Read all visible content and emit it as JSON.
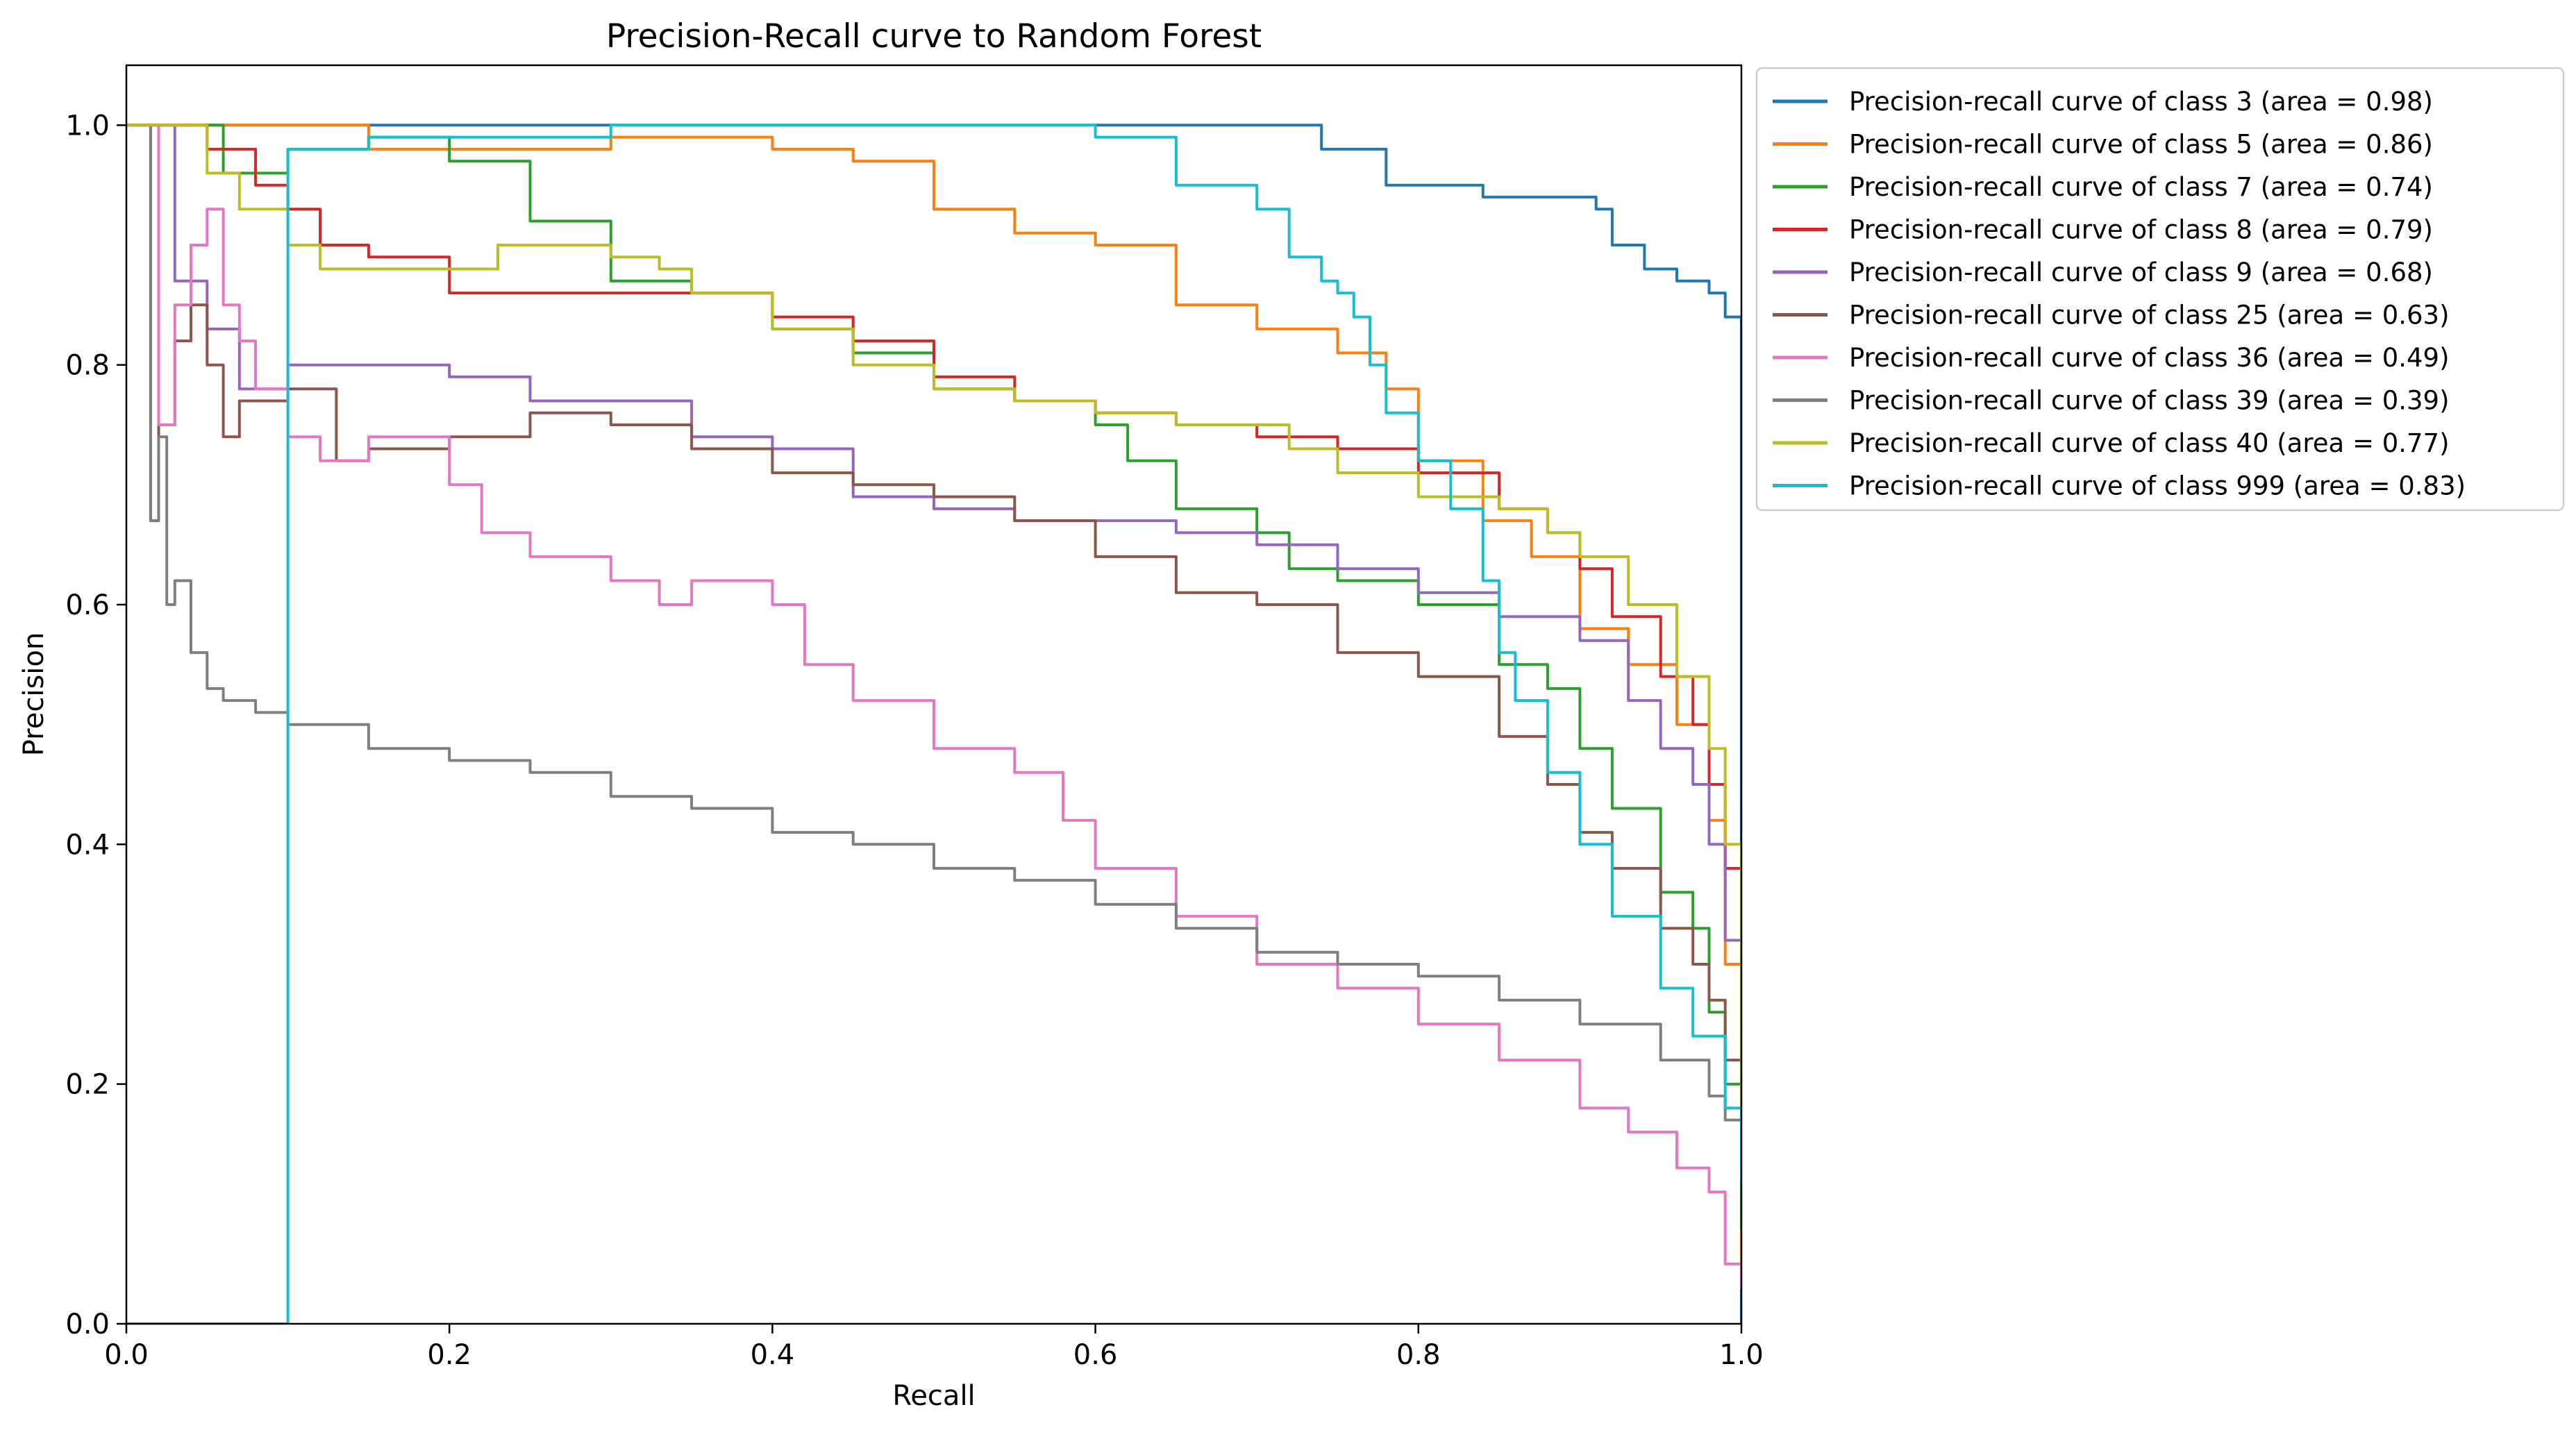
{
  "chart_data": {
    "type": "line",
    "title": "Precision-Recall curve to Random Forest",
    "xlabel": "Recall",
    "ylabel": "Precision",
    "xlim": [
      0.0,
      1.0
    ],
    "ylim": [
      0.0,
      1.05
    ],
    "xticks": [
      0.0,
      0.2,
      0.4,
      0.6,
      0.8,
      1.0
    ],
    "yticks": [
      0.0,
      0.2,
      0.4,
      0.6,
      0.8,
      1.0
    ],
    "xtick_labels": [
      "0.0",
      "0.2",
      "0.4",
      "0.6",
      "0.8",
      "1.0"
    ],
    "ytick_labels": [
      "0.0",
      "0.2",
      "0.4",
      "0.6",
      "0.8",
      "1.0"
    ],
    "grid": false,
    "legend_position": "outside-right-top",
    "series": [
      {
        "name": "Precision-recall curve of class 3 (area = 0.98)",
        "color": "#1f77b4",
        "x": [
          0.0,
          0.73,
          0.74,
          0.75,
          0.78,
          0.8,
          0.84,
          0.88,
          0.91,
          0.92,
          0.94,
          0.96,
          0.98,
          0.99,
          0.99,
          1.0,
          1.0
        ],
        "y": [
          1.0,
          1.0,
          0.98,
          0.98,
          0.95,
          0.95,
          0.94,
          0.94,
          0.93,
          0.9,
          0.88,
          0.87,
          0.86,
          0.86,
          0.84,
          0.64,
          0.0
        ]
      },
      {
        "name": "Precision-recall curve of class 5 (area = 0.86)",
        "color": "#ff7f0e",
        "x": [
          0.0,
          0.13,
          0.15,
          0.2,
          0.3,
          0.35,
          0.4,
          0.4,
          0.45,
          0.5,
          0.55,
          0.6,
          0.65,
          0.7,
          0.75,
          0.78,
          0.8,
          0.84,
          0.87,
          0.9,
          0.93,
          0.96,
          0.98,
          0.99,
          1.0,
          1.0
        ],
        "y": [
          1.0,
          1.0,
          0.98,
          0.98,
          0.99,
          0.99,
          0.98,
          0.98,
          0.97,
          0.93,
          0.91,
          0.9,
          0.85,
          0.83,
          0.81,
          0.78,
          0.72,
          0.67,
          0.64,
          0.58,
          0.55,
          0.5,
          0.42,
          0.3,
          0.15,
          0.05
        ]
      },
      {
        "name": "Precision-recall curve of class 7 (area = 0.74)",
        "color": "#2ca02c",
        "x": [
          0.0,
          0.05,
          0.06,
          0.1,
          0.15,
          0.2,
          0.25,
          0.3,
          0.35,
          0.4,
          0.45,
          0.5,
          0.55,
          0.6,
          0.62,
          0.65,
          0.7,
          0.72,
          0.75,
          0.8,
          0.85,
          0.88,
          0.9,
          0.92,
          0.95,
          0.97,
          0.98,
          0.99,
          1.0,
          1.0
        ],
        "y": [
          1.0,
          1.0,
          0.96,
          0.98,
          0.99,
          0.97,
          0.92,
          0.87,
          0.86,
          0.83,
          0.81,
          0.78,
          0.77,
          0.75,
          0.72,
          0.68,
          0.66,
          0.63,
          0.62,
          0.6,
          0.55,
          0.53,
          0.48,
          0.43,
          0.36,
          0.33,
          0.26,
          0.2,
          0.15,
          0.08
        ]
      },
      {
        "name": "Precision-recall curve of class 8 (area = 0.79)",
        "color": "#d62728",
        "x": [
          0.0,
          0.02,
          0.03,
          0.05,
          0.08,
          0.1,
          0.12,
          0.15,
          0.2,
          0.22,
          0.25,
          0.3,
          0.35,
          0.4,
          0.45,
          0.5,
          0.55,
          0.6,
          0.65,
          0.7,
          0.75,
          0.8,
          0.85,
          0.88,
          0.9,
          0.92,
          0.95,
          0.97,
          0.98,
          0.99,
          1.0,
          1.0
        ],
        "y": [
          1.0,
          1.0,
          1.0,
          0.98,
          0.95,
          0.93,
          0.9,
          0.89,
          0.86,
          0.86,
          0.86,
          0.86,
          0.86,
          0.84,
          0.82,
          0.79,
          0.77,
          0.76,
          0.75,
          0.74,
          0.73,
          0.71,
          0.68,
          0.66,
          0.63,
          0.59,
          0.54,
          0.5,
          0.45,
          0.38,
          0.28,
          0.15
        ]
      },
      {
        "name": "Precision-recall curve of class 9 (area = 0.68)",
        "color": "#9467bd",
        "x": [
          0.0,
          0.02,
          0.03,
          0.05,
          0.07,
          0.1,
          0.15,
          0.2,
          0.25,
          0.3,
          0.35,
          0.4,
          0.45,
          0.5,
          0.55,
          0.6,
          0.65,
          0.7,
          0.75,
          0.8,
          0.85,
          0.9,
          0.93,
          0.95,
          0.97,
          0.98,
          0.99,
          1.0,
          1.0
        ],
        "y": [
          1.0,
          1.0,
          0.87,
          0.83,
          0.78,
          0.8,
          0.8,
          0.79,
          0.77,
          0.77,
          0.74,
          0.73,
          0.69,
          0.68,
          0.67,
          0.67,
          0.66,
          0.65,
          0.63,
          0.61,
          0.59,
          0.57,
          0.52,
          0.48,
          0.45,
          0.4,
          0.32,
          0.2,
          0.12
        ]
      },
      {
        "name": "Precision-recall curve of class 25 (area = 0.63)",
        "color": "#8c564b",
        "x": [
          0.0,
          0.01,
          0.015,
          0.02,
          0.03,
          0.04,
          0.05,
          0.06,
          0.07,
          0.1,
          0.13,
          0.15,
          0.2,
          0.25,
          0.3,
          0.35,
          0.4,
          0.45,
          0.5,
          0.55,
          0.6,
          0.65,
          0.7,
          0.75,
          0.8,
          0.85,
          0.88,
          0.9,
          0.92,
          0.95,
          0.97,
          0.98,
          0.99,
          1.0,
          1.0
        ],
        "y": [
          1.0,
          1.0,
          0.67,
          0.75,
          0.82,
          0.85,
          0.8,
          0.74,
          0.77,
          0.78,
          0.72,
          0.73,
          0.74,
          0.76,
          0.75,
          0.73,
          0.71,
          0.7,
          0.69,
          0.67,
          0.64,
          0.61,
          0.6,
          0.56,
          0.54,
          0.49,
          0.45,
          0.41,
          0.38,
          0.33,
          0.3,
          0.27,
          0.22,
          0.18,
          0.12
        ]
      },
      {
        "name": "Precision-recall curve of class 36 (area = 0.49)",
        "color": "#e377c2",
        "x": [
          0.0,
          0.01,
          0.02,
          0.03,
          0.04,
          0.05,
          0.06,
          0.07,
          0.08,
          0.1,
          0.12,
          0.15,
          0.2,
          0.22,
          0.25,
          0.3,
          0.33,
          0.35,
          0.4,
          0.42,
          0.45,
          0.5,
          0.55,
          0.58,
          0.6,
          0.65,
          0.7,
          0.75,
          0.8,
          0.85,
          0.9,
          0.93,
          0.96,
          0.98,
          0.99,
          1.0
        ],
        "y": [
          1.0,
          1.0,
          0.75,
          0.85,
          0.9,
          0.93,
          0.85,
          0.82,
          0.78,
          0.74,
          0.72,
          0.74,
          0.7,
          0.66,
          0.64,
          0.62,
          0.6,
          0.62,
          0.6,
          0.55,
          0.52,
          0.48,
          0.46,
          0.42,
          0.38,
          0.34,
          0.3,
          0.28,
          0.25,
          0.22,
          0.18,
          0.16,
          0.13,
          0.11,
          0.05,
          0.03
        ]
      },
      {
        "name": "Precision-recall curve of class 39 (area = 0.39)",
        "color": "#7f7f7f",
        "x": [
          0.0,
          0.01,
          0.015,
          0.02,
          0.025,
          0.03,
          0.04,
          0.05,
          0.06,
          0.08,
          0.1,
          0.15,
          0.2,
          0.25,
          0.3,
          0.35,
          0.4,
          0.45,
          0.5,
          0.55,
          0.6,
          0.65,
          0.7,
          0.75,
          0.8,
          0.85,
          0.9,
          0.95,
          0.98,
          0.99,
          1.0
        ],
        "y": [
          1.0,
          1.0,
          0.67,
          0.74,
          0.6,
          0.62,
          0.56,
          0.53,
          0.52,
          0.51,
          0.5,
          0.48,
          0.47,
          0.46,
          0.44,
          0.43,
          0.41,
          0.4,
          0.38,
          0.37,
          0.35,
          0.33,
          0.31,
          0.3,
          0.29,
          0.27,
          0.25,
          0.22,
          0.19,
          0.17,
          0.14
        ]
      },
      {
        "name": "Precision-recall curve of class 40 (area = 0.77)",
        "color": "#bcbd22",
        "x": [
          0.0,
          0.02,
          0.03,
          0.05,
          0.07,
          0.1,
          0.12,
          0.15,
          0.2,
          0.23,
          0.25,
          0.3,
          0.33,
          0.35,
          0.4,
          0.45,
          0.5,
          0.55,
          0.6,
          0.65,
          0.7,
          0.72,
          0.75,
          0.8,
          0.85,
          0.88,
          0.9,
          0.93,
          0.96,
          0.98,
          0.99,
          1.0,
          1.0
        ],
        "y": [
          1.0,
          1.0,
          1.0,
          0.96,
          0.93,
          0.9,
          0.88,
          0.88,
          0.88,
          0.9,
          0.9,
          0.89,
          0.88,
          0.86,
          0.83,
          0.8,
          0.78,
          0.77,
          0.76,
          0.75,
          0.75,
          0.73,
          0.71,
          0.69,
          0.68,
          0.66,
          0.64,
          0.6,
          0.54,
          0.48,
          0.4,
          0.28,
          0.15
        ]
      },
      {
        "name": "Precision-recall curve of class 999 (area = 0.83)",
        "color": "#17becf",
        "x": [
          0.0,
          0.1,
          0.15,
          0.2,
          0.3,
          0.4,
          0.5,
          0.55,
          0.6,
          0.62,
          0.65,
          0.7,
          0.72,
          0.74,
          0.75,
          0.76,
          0.77,
          0.78,
          0.8,
          0.82,
          0.84,
          0.85,
          0.86,
          0.88,
          0.9,
          0.92,
          0.95,
          0.97,
          0.99,
          1.0
        ],
        "y": [
          0.0,
          0.98,
          0.99,
          0.99,
          1.0,
          1.0,
          1.0,
          1.0,
          0.99,
          0.99,
          0.95,
          0.93,
          0.89,
          0.87,
          0.86,
          0.84,
          0.8,
          0.76,
          0.72,
          0.68,
          0.62,
          0.56,
          0.52,
          0.46,
          0.4,
          0.34,
          0.28,
          0.24,
          0.18,
          0.12
        ]
      }
    ]
  }
}
